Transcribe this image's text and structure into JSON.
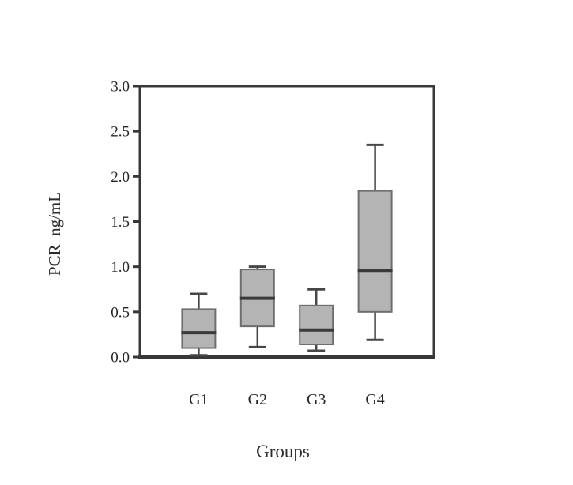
{
  "figure": {
    "background": "#ffffff"
  },
  "chart_data": {
    "type": "boxplot",
    "title": "",
    "xlabel": "Groups",
    "ylabel": "PCR  ng/mL",
    "categories": [
      "G1",
      "G2",
      "G3",
      "G4"
    ],
    "y_axis": {
      "min": 0.0,
      "max": 3.0,
      "tick_step": 0.5,
      "tick_labels": [
        "0.0",
        "0.5",
        "1.0",
        "1.5",
        "2.0",
        "2.5",
        "3.0"
      ]
    },
    "grid": false,
    "legend": false,
    "series": [
      {
        "category": "G1",
        "whisker_low": 0.02,
        "q1": 0.1,
        "median": 0.27,
        "q3": 0.53,
        "whisker_high": 0.7
      },
      {
        "category": "G2",
        "whisker_low": 0.11,
        "q1": 0.34,
        "median": 0.65,
        "q3": 0.97,
        "whisker_high": 1.0
      },
      {
        "category": "G3",
        "whisker_low": 0.07,
        "q1": 0.14,
        "median": 0.3,
        "q3": 0.57,
        "whisker_high": 0.75
      },
      {
        "category": "G4",
        "whisker_low": 0.19,
        "q1": 0.5,
        "median": 0.96,
        "q3": 1.84,
        "whisker_high": 2.35
      }
    ]
  },
  "style": {
    "box_fill": "#b4b4b4",
    "box_border": "#6e6e6e",
    "median_color": "#3a3a3a",
    "whisker_color": "#474747",
    "frame_color": "#383838",
    "text_color": "#262626"
  }
}
